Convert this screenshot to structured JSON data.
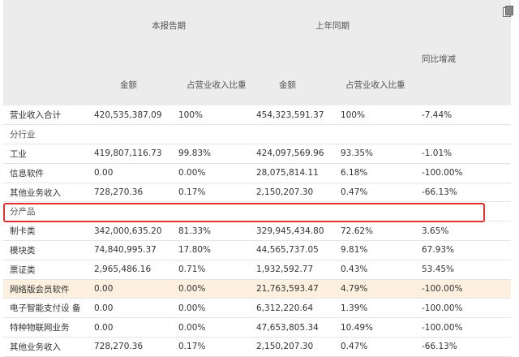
{
  "header": {
    "group_current": "本报告期",
    "group_prior": "上年同期",
    "yoy_label": "同比增减",
    "amount_label": "金额",
    "ratio_label": "占营业收入比重",
    "amount_label_2": "金额",
    "ratio_label_2": "占营业收入比重"
  },
  "rows": [
    {
      "type": "data",
      "label": "营业收入合计",
      "cur_amount": "420,535,387.09",
      "cur_ratio": "100%",
      "prior_amount": "454,323,591.37",
      "prior_ratio": "100%",
      "yoy": "-7.44%"
    },
    {
      "type": "section",
      "label": "分行业"
    },
    {
      "type": "data",
      "label": "工业",
      "cur_amount": "419,807,116.73",
      "cur_ratio": "99.83%",
      "prior_amount": "424,097,569.96",
      "prior_ratio": "93.35%",
      "yoy": "-1.01%"
    },
    {
      "type": "data",
      "label": "信息软件",
      "cur_amount": "0.00",
      "cur_ratio": "0.00%",
      "prior_amount": "28,075,814.11",
      "prior_ratio": "6.18%",
      "yoy": "-100.00%"
    },
    {
      "type": "data",
      "label": "其他业务收入",
      "cur_amount": "728,270.36",
      "cur_ratio": "0.17%",
      "prior_amount": "2,150,207.30",
      "prior_ratio": "0.47%",
      "yoy": "-66.13%"
    },
    {
      "type": "section",
      "label": "分产品"
    },
    {
      "type": "data",
      "label": "制卡类",
      "cur_amount": "342,000,635.20",
      "cur_ratio": "81.33%",
      "prior_amount": "329,945,434.80",
      "prior_ratio": "72.62%",
      "yoy": "3.65%"
    },
    {
      "type": "data",
      "label": "模块类",
      "cur_amount": "74,840,995.37",
      "cur_ratio": "17.80%",
      "prior_amount": "44,565,737.05",
      "prior_ratio": "9.81%",
      "yoy": "67.93%"
    },
    {
      "type": "data",
      "label": "票证类",
      "cur_amount": "2,965,486.16",
      "cur_ratio": "0.71%",
      "prior_amount": "1,932,592.77",
      "prior_ratio": "0.43%",
      "yoy": "53.45%"
    },
    {
      "type": "data",
      "label": "网络版会员软件",
      "cur_amount": "0.00",
      "cur_ratio": "0.00%",
      "prior_amount": "21,763,593.47",
      "prior_ratio": "4.79%",
      "yoy": "-100.00%"
    },
    {
      "type": "data",
      "label": "电子智能支付设 备",
      "cur_amount": "0.00",
      "cur_ratio": "0.00%",
      "prior_amount": "6,312,220.64",
      "prior_ratio": "1.39%",
      "yoy": "-100.00%"
    },
    {
      "type": "data",
      "label": "特种物联网业务",
      "cur_amount": "0.00",
      "cur_ratio": "0.00%",
      "prior_amount": "47,653,805.34",
      "prior_ratio": "10.49%",
      "yoy": "-100.00%"
    },
    {
      "type": "data",
      "label": "其他业务收入",
      "cur_amount": "728,270.36",
      "cur_ratio": "0.17%",
      "prior_amount": "2,150,207.30",
      "prior_ratio": "0.47%",
      "yoy": "-66.13%"
    }
  ],
  "highlight_color": "#fdf0df",
  "callout_color": "#e03030",
  "icons": {
    "copy": "copy-icon"
  }
}
